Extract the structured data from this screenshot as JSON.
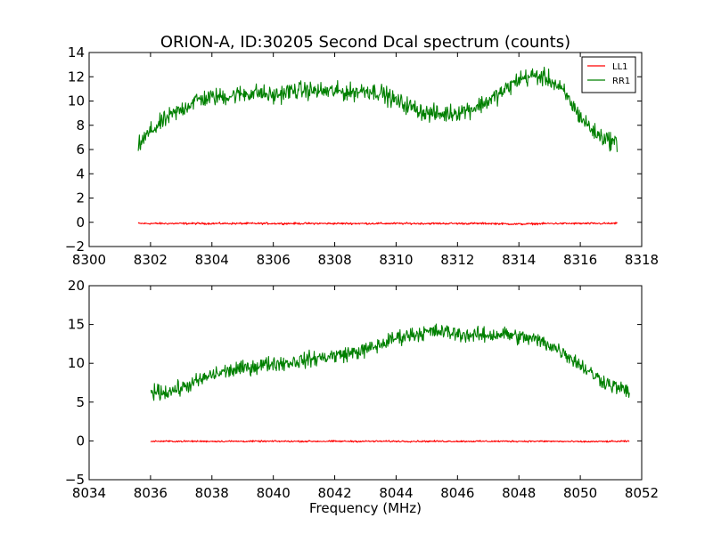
{
  "chart_data": [
    {
      "type": "line",
      "title": "ORION-A, ID:30205 Second Dcal spectrum (counts)",
      "xlabel": "",
      "ylabel": "",
      "xlim": [
        8300,
        8318
      ],
      "ylim": [
        -2,
        14
      ],
      "xticks": [
        "8300",
        "8302",
        "8304",
        "8306",
        "8308",
        "8310",
        "8312",
        "8314",
        "8316",
        "8318"
      ],
      "yticks": [
        "−2",
        "0",
        "2",
        "4",
        "6",
        "8",
        "10",
        "12",
        "14"
      ],
      "legend": "top-right",
      "grid": false,
      "series": [
        {
          "name": "LL1",
          "color": "#ff0000",
          "x": [
            8301.6,
            8302.0,
            8303.0,
            8304.0,
            8305.0,
            8306.0,
            8307.0,
            8308.0,
            8309.0,
            8310.0,
            8311.0,
            8312.0,
            8313.0,
            8314.0,
            8315.0,
            8316.0,
            8317.2
          ],
          "values": [
            -0.1,
            -0.1,
            -0.1,
            -0.1,
            -0.1,
            -0.1,
            -0.1,
            -0.1,
            -0.1,
            -0.1,
            -0.1,
            -0.1,
            -0.1,
            -0.15,
            -0.1,
            -0.1,
            -0.1
          ],
          "noise": 0.06
        },
        {
          "name": "RR1",
          "color": "#008000",
          "x": [
            8301.6,
            8302.0,
            8302.5,
            8303.0,
            8303.5,
            8304.0,
            8304.5,
            8305.0,
            8305.5,
            8306.0,
            8306.5,
            8307.0,
            8307.5,
            8308.0,
            8308.5,
            8309.0,
            8309.5,
            8310.0,
            8310.5,
            8311.0,
            8311.5,
            8312.0,
            8312.5,
            8313.0,
            8313.5,
            8314.0,
            8314.5,
            8315.0,
            8315.5,
            8316.0,
            8316.5,
            8317.2
          ],
          "values": [
            6.3,
            7.5,
            8.5,
            9.3,
            10.1,
            10.3,
            10.4,
            10.6,
            10.7,
            10.4,
            10.8,
            10.9,
            10.8,
            10.8,
            10.7,
            10.9,
            10.7,
            10.0,
            9.5,
            9.0,
            8.9,
            9.1,
            9.4,
            10.0,
            10.8,
            11.8,
            12.1,
            11.8,
            10.6,
            8.7,
            7.3,
            6.5
          ],
          "noise": 0.55
        }
      ]
    },
    {
      "type": "line",
      "title": "",
      "xlabel": "Frequency (MHz)",
      "ylabel": "",
      "xlim": [
        8034,
        8052
      ],
      "ylim": [
        -5,
        20
      ],
      "xticks": [
        "8034",
        "8036",
        "8038",
        "8040",
        "8042",
        "8044",
        "8046",
        "8048",
        "8050",
        "8052"
      ],
      "yticks": [
        "−5",
        "0",
        "5",
        "10",
        "15",
        "20"
      ],
      "legend": "none",
      "grid": false,
      "series": [
        {
          "name": "",
          "color": "#ff0000",
          "x": [
            8036.0,
            8037.0,
            8038.0,
            8039.0,
            8040.0,
            8041.0,
            8042.0,
            8043.0,
            8044.0,
            8045.0,
            8046.0,
            8047.0,
            8048.0,
            8049.0,
            8050.0,
            8051.6
          ],
          "values": [
            -0.05,
            -0.05,
            -0.05,
            -0.05,
            -0.05,
            -0.05,
            -0.05,
            -0.05,
            -0.05,
            -0.05,
            -0.05,
            -0.05,
            -0.05,
            -0.05,
            -0.1,
            -0.05
          ],
          "noise": 0.08
        },
        {
          "name": "",
          "color": "#008000",
          "x": [
            8036.0,
            8036.5,
            8037.0,
            8037.5,
            8038.0,
            8038.5,
            8039.0,
            8039.5,
            8040.0,
            8040.5,
            8041.0,
            8041.5,
            8042.0,
            8042.5,
            8043.0,
            8043.5,
            8044.0,
            8044.5,
            8045.0,
            8045.5,
            8046.0,
            8046.5,
            8047.0,
            8047.5,
            8048.0,
            8048.5,
            8049.0,
            8049.5,
            8050.0,
            8050.5,
            8051.0,
            8051.6
          ],
          "values": [
            6.3,
            6.3,
            6.8,
            7.6,
            8.5,
            9.0,
            9.3,
            9.7,
            10.0,
            10.1,
            10.4,
            10.7,
            11.0,
            11.3,
            11.7,
            12.4,
            13.3,
            13.7,
            14.0,
            14.1,
            13.8,
            13.6,
            13.6,
            13.8,
            13.4,
            13.1,
            12.4,
            11.3,
            9.8,
            8.3,
            7.2,
            6.3
          ],
          "noise": 0.75
        }
      ]
    }
  ]
}
